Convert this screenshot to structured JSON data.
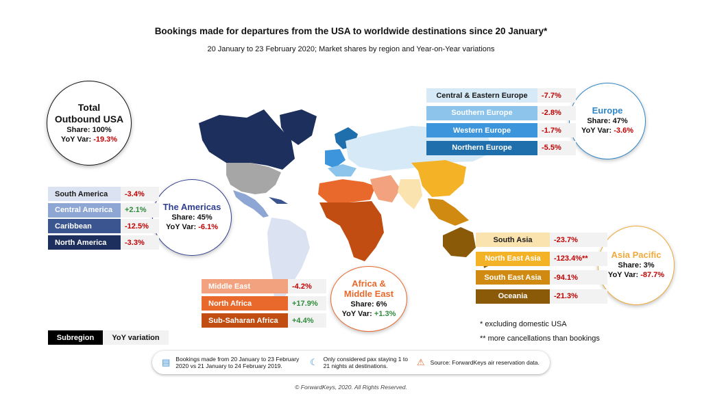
{
  "title": "Bookings made for departures from the USA to worldwide destinations since 20 January*",
  "subtitle": "20 January to 23 February 2020; Market shares by region and Year-on-Year variations",
  "total": {
    "line1": "Total",
    "line2": "Outbound USA",
    "share": "Share: 100%",
    "yoy_label": "YoY Var:",
    "yoy_value": "-19.3%"
  },
  "chart_data": {
    "type": "table",
    "title": "Bookings made for departures from the USA to worldwide destinations since 20 January*",
    "regions": [
      {
        "name": "Europe",
        "share": "Share: 47%",
        "yoy_label": "YoY Var:",
        "yoy": "-3.6%",
        "color": "#2e86c8",
        "subregions": [
          {
            "name": "Central & Eastern Europe",
            "yoy": "-7.7%",
            "color": "#d6e9f7",
            "text_color": "#1a1a1a"
          },
          {
            "name": "Southern Europe",
            "yoy": "-2.8%",
            "color": "#8cc4ec",
            "text_color": "#ffffff"
          },
          {
            "name": "Western Europe",
            "yoy": "-1.7%",
            "color": "#3d96dc",
            "text_color": "#ffffff"
          },
          {
            "name": "Northern Europe",
            "yoy": "-5.5%",
            "color": "#1f6fad",
            "text_color": "#ffffff"
          }
        ]
      },
      {
        "name": "The Americas",
        "share": "Share: 45%",
        "yoy_label": "YoY Var:",
        "yoy": "-6.1%",
        "color": "#2f3f8f",
        "subregions": [
          {
            "name": "South America",
            "yoy": "-3.4%",
            "color": "#dbe2f1",
            "text_color": "#1a1a1a"
          },
          {
            "name": "Central America",
            "yoy": "+2.1%",
            "color": "#8ea6d4",
            "text_color": "#ffffff"
          },
          {
            "name": "Caribbean",
            "yoy": "-12.5%",
            "color": "#3b5590",
            "text_color": "#ffffff"
          },
          {
            "name": "North America",
            "yoy": "-3.3%",
            "color": "#1d2f5c",
            "text_color": "#ffffff"
          }
        ]
      },
      {
        "name": "Africa & Middle East",
        "share": "Share: 6%",
        "yoy_label": "YoY Var:",
        "yoy": "+1.3%",
        "color": "#e8692b",
        "subregions": [
          {
            "name": "Middle East",
            "yoy": "-4.2%",
            "color": "#f2a27e",
            "text_color": "#ffffff"
          },
          {
            "name": "North Africa",
            "yoy": "+17.9%",
            "color": "#e8692b",
            "text_color": "#ffffff"
          },
          {
            "name": "Sub-Saharan Africa",
            "yoy": "+4.4%",
            "color": "#c14d12",
            "text_color": "#ffffff"
          }
        ]
      },
      {
        "name": "Asia Pacific",
        "share": "Share: 3%",
        "yoy_label": "YoY Var:",
        "yoy": "-87.7%",
        "color": "#f0a93b",
        "subregions": [
          {
            "name": "South Asia",
            "yoy": "-23.7%",
            "color": "#fbe3b0",
            "text_color": "#1a1a1a"
          },
          {
            "name": "North East Asia",
            "yoy": "-123.4%**",
            "color": "#f4b227",
            "text_color": "#ffffff"
          },
          {
            "name": "South East Asia",
            "yoy": "-94.1%",
            "color": "#d08a12",
            "text_color": "#ffffff"
          },
          {
            "name": "Oceania",
            "yoy": "-21.3%",
            "color": "#8a5a08",
            "text_color": "#ffffff"
          }
        ]
      }
    ]
  },
  "notes": {
    "note1": "* excluding domestic USA",
    "note2": "** more cancellations than bookings"
  },
  "legend": {
    "subregion": "Subregion",
    "yoy": "YoY variation"
  },
  "footer": {
    "item1": "Bookings made from 20 January to 23 February 2020 vs 21 January to 24 February 2019.",
    "item2": "Only considered pax staying 1 to 21 nights at destinations.",
    "item3": "Source: ForwardKeys air reservation data."
  },
  "copyright": "© ForwardKeys, 2020. All Rights Reserved."
}
